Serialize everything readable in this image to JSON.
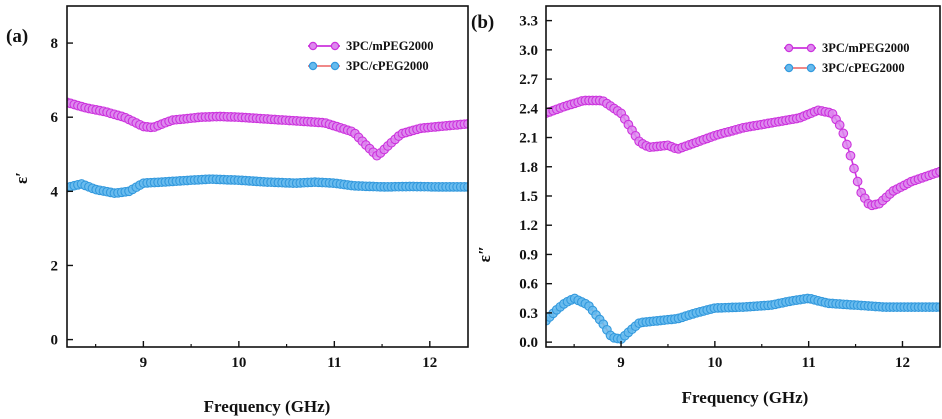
{
  "colors": {
    "series1_line": "#cc33dd",
    "series1_fill": "#dd88ee",
    "series2_line": "#ee7777",
    "series2_fill": "#66bbee",
    "series2_edge": "#3399dd"
  },
  "chart_data": [
    {
      "type": "scatter",
      "panel_label": "(a)",
      "xlabel": "Frequency (GHz)",
      "ylabel": "ε′",
      "xlim": [
        8.2,
        12.4
      ],
      "ylim": [
        -0.2,
        9.0
      ],
      "xticks": [
        9,
        10,
        11,
        12
      ],
      "xtick_labels": [
        "9",
        "10",
        "11",
        "12"
      ],
      "yticks": [
        0,
        2,
        4,
        6,
        8
      ],
      "ytick_labels": [
        "0",
        "2",
        "4",
        "6",
        "8"
      ],
      "grid": false,
      "legend_position": "top-right",
      "series": [
        {
          "name": "3PC/mPEG2000",
          "x": [
            8.2,
            8.4,
            8.6,
            8.8,
            9.0,
            9.1,
            9.3,
            9.6,
            9.8,
            10.0,
            10.3,
            10.6,
            10.9,
            11.2,
            11.35,
            11.45,
            11.55,
            11.7,
            11.9,
            12.1,
            12.4
          ],
          "y": [
            6.4,
            6.25,
            6.15,
            6.0,
            5.75,
            5.72,
            5.92,
            6.0,
            6.02,
            6.0,
            5.95,
            5.9,
            5.85,
            5.6,
            5.2,
            4.95,
            5.2,
            5.55,
            5.7,
            5.75,
            5.82
          ]
        },
        {
          "name": "3PC/cPEG2000",
          "x": [
            8.2,
            8.35,
            8.5,
            8.7,
            8.85,
            9.0,
            9.2,
            9.5,
            9.7,
            10.0,
            10.3,
            10.6,
            10.8,
            11.0,
            11.2,
            11.5,
            11.8,
            12.1,
            12.4
          ],
          "y": [
            4.1,
            4.2,
            4.05,
            3.95,
            4.0,
            4.22,
            4.25,
            4.3,
            4.33,
            4.3,
            4.25,
            4.22,
            4.25,
            4.22,
            4.15,
            4.12,
            4.13,
            4.12,
            4.12
          ]
        }
      ]
    },
    {
      "type": "scatter",
      "panel_label": "(b)",
      "xlabel": "Frequency (GHz)",
      "ylabel": "ε″",
      "xlim": [
        8.2,
        12.4
      ],
      "ylim": [
        -0.05,
        3.45
      ],
      "xticks": [
        9,
        10,
        11,
        12
      ],
      "xtick_labels": [
        "9",
        "10",
        "11",
        "12"
      ],
      "yticks": [
        0.0,
        0.3,
        0.6,
        0.9,
        1.2,
        1.5,
        1.8,
        2.1,
        2.4,
        2.7,
        3.0,
        3.3
      ],
      "ytick_labels": [
        "0.0",
        "0.3",
        "0.6",
        "0.9",
        "1.2",
        "1.5",
        "1.8",
        "2.1",
        "2.4",
        "2.7",
        "3.0",
        "3.3"
      ],
      "grid": false,
      "legend_position": "top-right",
      "series": [
        {
          "name": "3PC/mPEG2000",
          "x": [
            8.2,
            8.4,
            8.6,
            8.8,
            9.0,
            9.1,
            9.2,
            9.3,
            9.5,
            9.6,
            9.8,
            10.0,
            10.3,
            10.6,
            10.9,
            11.1,
            11.25,
            11.35,
            11.45,
            11.55,
            11.65,
            11.75,
            11.9,
            12.1,
            12.4
          ],
          "y": [
            2.35,
            2.42,
            2.48,
            2.48,
            2.35,
            2.2,
            2.05,
            2.0,
            2.02,
            1.98,
            2.05,
            2.12,
            2.2,
            2.25,
            2.3,
            2.38,
            2.35,
            2.2,
            1.9,
            1.55,
            1.4,
            1.42,
            1.55,
            1.65,
            1.75
          ]
        },
        {
          "name": "3PC/cPEG2000",
          "x": [
            8.2,
            8.3,
            8.4,
            8.5,
            8.65,
            8.8,
            8.9,
            9.0,
            9.1,
            9.2,
            9.4,
            9.6,
            9.8,
            10.0,
            10.3,
            10.6,
            10.8,
            11.0,
            11.2,
            11.5,
            11.8,
            12.1,
            12.4
          ],
          "y": [
            0.22,
            0.32,
            0.4,
            0.45,
            0.38,
            0.2,
            0.05,
            0.03,
            0.12,
            0.2,
            0.22,
            0.24,
            0.3,
            0.35,
            0.36,
            0.38,
            0.42,
            0.45,
            0.4,
            0.38,
            0.36,
            0.36,
            0.36
          ]
        }
      ]
    }
  ]
}
